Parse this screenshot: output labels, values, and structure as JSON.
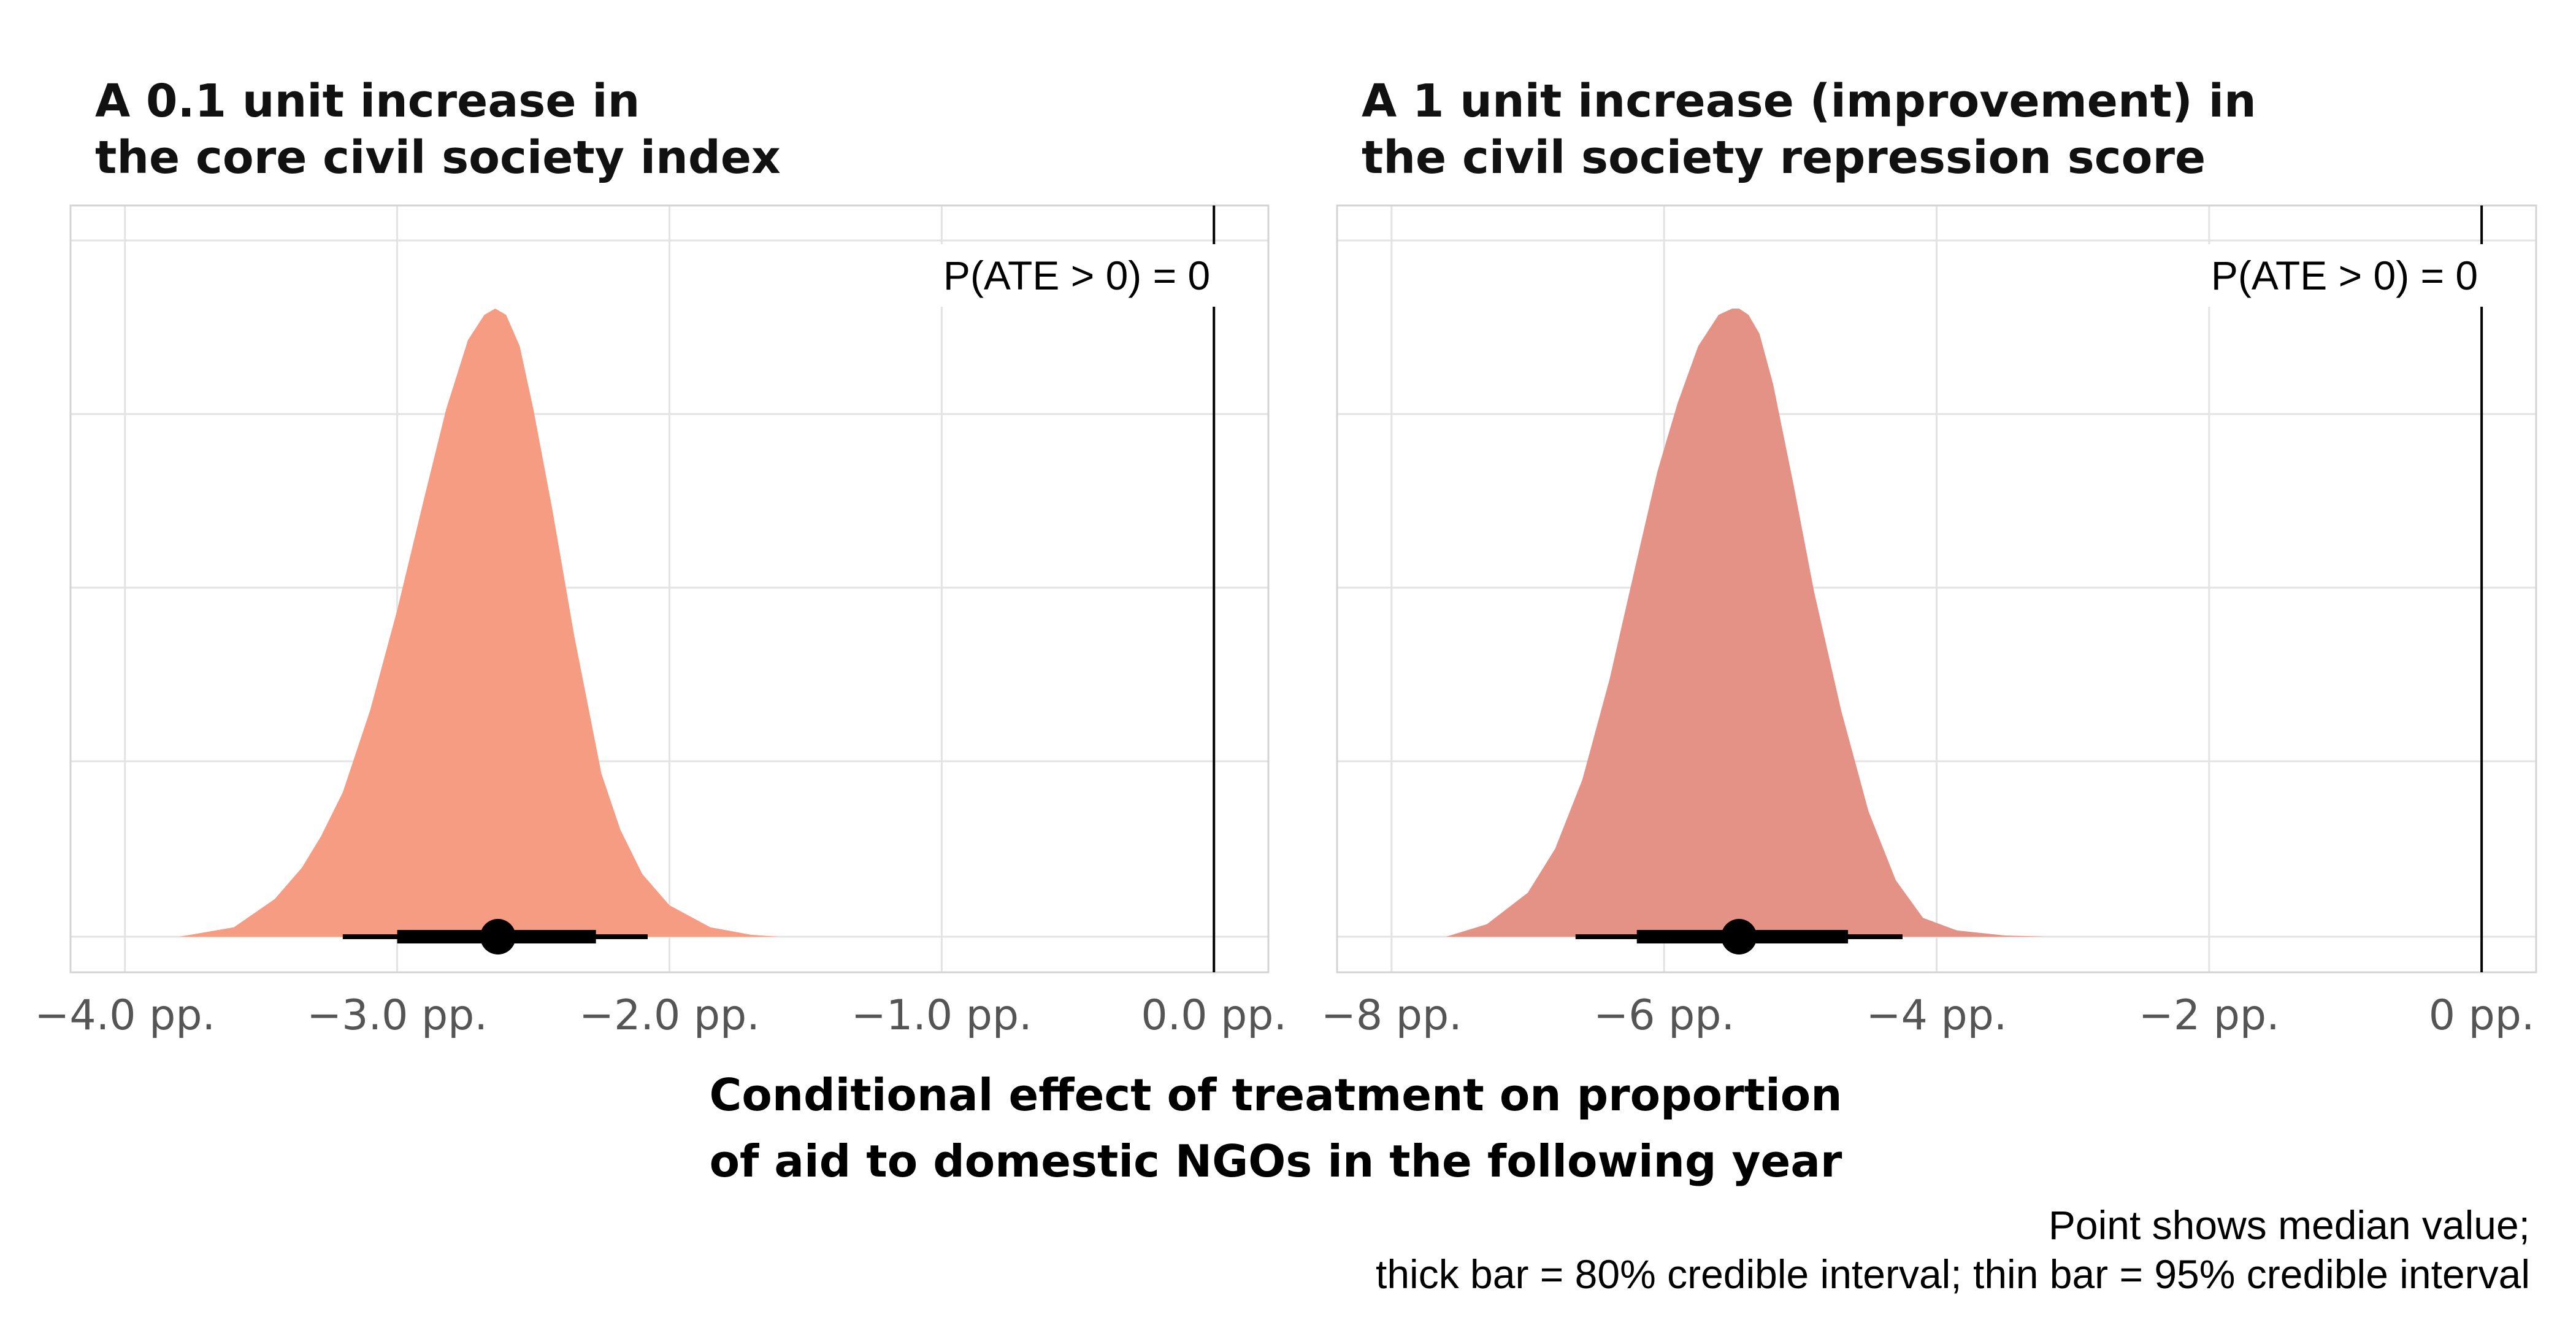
{
  "chart_data": [
    {
      "type": "area",
      "title": "A 0.1 unit increase in\nthe core civil society index",
      "xlim": [
        -4.2,
        0.2
      ],
      "ticks": [
        -4.0,
        -3.0,
        -2.0,
        -1.0,
        0.0
      ],
      "tick_labels": [
        "−4.0 pp.",
        "−3.0 pp.",
        "−2.0 pp.",
        "−1.0 pp.",
        "0.0 pp."
      ],
      "reference_line": 0.0,
      "fill_color": "#F59C83",
      "density_x": [
        -3.8,
        -3.6,
        -3.45,
        -3.35,
        -3.28,
        -3.2,
        -3.1,
        -3.0,
        -2.9,
        -2.82,
        -2.74,
        -2.68,
        -2.64,
        -2.6,
        -2.55,
        -2.5,
        -2.43,
        -2.35,
        -2.25,
        -2.18,
        -2.1,
        -2.0,
        -1.85,
        -1.7,
        -1.6
      ],
      "density_y": [
        0.0,
        0.015,
        0.06,
        0.11,
        0.16,
        0.23,
        0.36,
        0.52,
        0.7,
        0.84,
        0.95,
        0.99,
        1.0,
        0.99,
        0.94,
        0.84,
        0.68,
        0.48,
        0.26,
        0.17,
        0.1,
        0.05,
        0.015,
        0.003,
        0.0
      ],
      "median": -2.63,
      "ci80": [
        -3.0,
        -2.27
      ],
      "ci95": [
        -3.2,
        -2.08
      ],
      "annotation": "P(ATE > 0) = 0"
    },
    {
      "type": "area",
      "title": "A 1 unit increase (improvement) in\nthe civil society repression score",
      "xlim": [
        -8.4,
        0.4
      ],
      "ticks": [
        -8,
        -6,
        -4,
        -2,
        0
      ],
      "tick_labels": [
        "−8 pp.",
        "−6 pp.",
        "−4 pp.",
        "−2 pp.",
        "0 pp."
      ],
      "reference_line": 0.0,
      "fill_color": "#E59286",
      "density_x": [
        -7.6,
        -7.3,
        -7.0,
        -6.8,
        -6.6,
        -6.4,
        -6.2,
        -6.05,
        -5.9,
        -5.75,
        -5.6,
        -5.5,
        -5.45,
        -5.38,
        -5.3,
        -5.2,
        -5.05,
        -4.9,
        -4.7,
        -4.5,
        -4.3,
        -4.1,
        -3.85,
        -3.5,
        -3.2
      ],
      "density_y": [
        0.0,
        0.02,
        0.07,
        0.14,
        0.25,
        0.41,
        0.6,
        0.74,
        0.85,
        0.94,
        0.99,
        1.0,
        1.0,
        0.99,
        0.96,
        0.88,
        0.72,
        0.55,
        0.36,
        0.2,
        0.09,
        0.03,
        0.01,
        0.002,
        0.0
      ],
      "median": -5.45,
      "ci80": [
        -6.2,
        -4.65
      ],
      "ci95": [
        -6.65,
        -4.25
      ],
      "annotation": "P(ATE > 0) = 0"
    }
  ],
  "xlabel": "Conditional effect of treatment on proportion\nof aid to domestic NGOs in the following year",
  "caption": "Point shows median value;\nthick bar = 80% credible interval; thin bar = 95% credible interval"
}
